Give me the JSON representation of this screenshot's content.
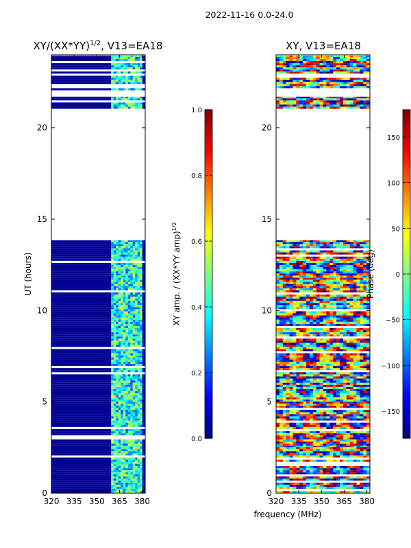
{
  "header": {
    "date_range": "2022-11-16 0.0-24.0"
  },
  "colors": {
    "jet": [
      "#00007f",
      "#0000ff",
      "#007fff",
      "#00ffff",
      "#7fff7f",
      "#ffff00",
      "#ff7f00",
      "#ff0000",
      "#7f0000"
    ],
    "background": "#ffffff",
    "frame": "#000000"
  },
  "chart_data": [
    {
      "type": "heatmap",
      "title_main": "XY/(XX*YY)",
      "title_sup": "1/2",
      "title_rest": ", V13=EA18",
      "xlabel": "",
      "ylabel": "UT (hours)",
      "xlim": [
        320,
        382
      ],
      "ylim": [
        0,
        24
      ],
      "x_ticks": [
        320,
        335,
        350,
        365,
        380
      ],
      "y_ticks": [
        0,
        5,
        10,
        15,
        20
      ],
      "colorbar": {
        "label_main": "XY amp. / (XX*YY amp)",
        "label_sup": "1/2",
        "range": [
          0.0,
          1.0
        ],
        "ticks": [
          "0.0",
          "0.2",
          "0.4",
          "0.6",
          "0.8",
          "1.0"
        ],
        "tick_values": [
          0.0,
          0.2,
          0.4,
          0.6,
          0.8,
          1.0
        ],
        "colormap": "jet"
      },
      "data_intervals_hours": [
        [
          0.0,
          2.6
        ],
        [
          2.6,
          13.85
        ],
        [
          21.05,
          21.7
        ],
        [
          22.05,
          23.95
        ]
      ],
      "band_MHz": [
        359.5,
        379.5
      ],
      "background_value": 0.0,
      "band_value_range": [
        0.2,
        0.6
      ]
    },
    {
      "type": "heatmap",
      "title_main": "XY, V13=EA18",
      "xlabel": "frequency (MHz)",
      "ylabel": "",
      "xlim": [
        320,
        382
      ],
      "ylim": [
        0,
        24
      ],
      "x_ticks": [
        320,
        335,
        350,
        365,
        380
      ],
      "y_ticks": [
        0,
        5,
        10,
        15,
        20
      ],
      "colorbar": {
        "label_main": "Phase (deg)",
        "range": [
          -180,
          180
        ],
        "ticks": [
          "150",
          "100",
          "50",
          "0",
          "−50",
          "−100",
          "−150"
        ],
        "tick_values": [
          150,
          100,
          50,
          0,
          -50,
          -100,
          -150
        ],
        "colormap": "jet"
      },
      "data_intervals_hours": [
        [
          0.0,
          2.6
        ],
        [
          2.6,
          13.85
        ],
        [
          21.05,
          21.7
        ],
        [
          22.05,
          23.95
        ]
      ],
      "value_range_deg": [
        -180,
        180
      ]
    }
  ]
}
